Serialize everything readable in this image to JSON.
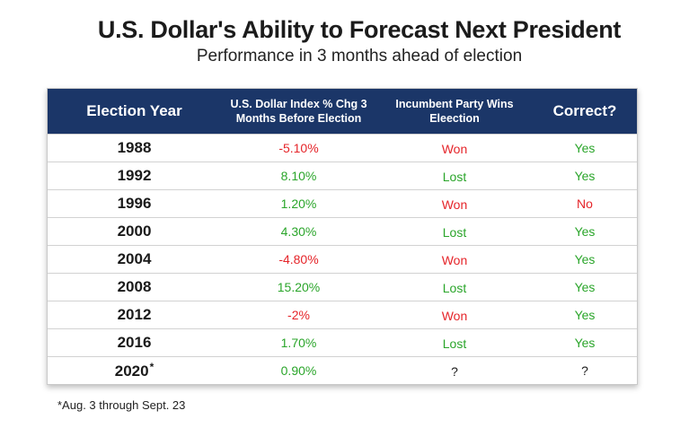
{
  "title": "U.S. Dollar's Ability to Forecast Next President",
  "subtitle": "Performance in 3 months ahead of election",
  "colors": {
    "header_bg": "#1b3668",
    "negative": "#e5252a",
    "positive": "#2aa52a"
  },
  "chart_data": {
    "type": "table",
    "title": "U.S. Dollar's Ability to Forecast Next President",
    "subtitle": "Performance in 3 months ahead of election",
    "columns": [
      "Election Year",
      "U.S. Dollar Index % Chg 3 Months Before Election",
      "Incumbent Party Wins Eleection",
      "Correct?"
    ],
    "rows": [
      {
        "year": "1988",
        "footnote_mark": "",
        "change": "-5.10%",
        "change_sign": "neg",
        "result": "Won",
        "result_sign": "neg",
        "correct": "Yes",
        "correct_sign": "pos"
      },
      {
        "year": "1992",
        "footnote_mark": "",
        "change": "8.10%",
        "change_sign": "pos",
        "result": "Lost",
        "result_sign": "pos",
        "correct": "Yes",
        "correct_sign": "pos"
      },
      {
        "year": "1996",
        "footnote_mark": "",
        "change": "1.20%",
        "change_sign": "pos",
        "result": "Won",
        "result_sign": "neg",
        "correct": "No",
        "correct_sign": "neg"
      },
      {
        "year": "2000",
        "footnote_mark": "",
        "change": "4.30%",
        "change_sign": "pos",
        "result": "Lost",
        "result_sign": "pos",
        "correct": "Yes",
        "correct_sign": "pos"
      },
      {
        "year": "2004",
        "footnote_mark": "",
        "change": "-4.80%",
        "change_sign": "neg",
        "result": "Won",
        "result_sign": "neg",
        "correct": "Yes",
        "correct_sign": "pos"
      },
      {
        "year": "2008",
        "footnote_mark": "",
        "change": "15.20%",
        "change_sign": "pos",
        "result": "Lost",
        "result_sign": "pos",
        "correct": "Yes",
        "correct_sign": "pos"
      },
      {
        "year": "2012",
        "footnote_mark": "",
        "change": "-2%",
        "change_sign": "neg",
        "result": "Won",
        "result_sign": "neg",
        "correct": "Yes",
        "correct_sign": "pos"
      },
      {
        "year": "2016",
        "footnote_mark": "",
        "change": "1.70%",
        "change_sign": "pos",
        "result": "Lost",
        "result_sign": "pos",
        "correct": "Yes",
        "correct_sign": "pos"
      },
      {
        "year": "2020",
        "footnote_mark": "*",
        "change": "0.90%",
        "change_sign": "pos",
        "result": "?",
        "result_sign": "neutral",
        "correct": "?",
        "correct_sign": "neutral"
      }
    ],
    "footnote": "*Aug. 3 through Sept. 23"
  }
}
